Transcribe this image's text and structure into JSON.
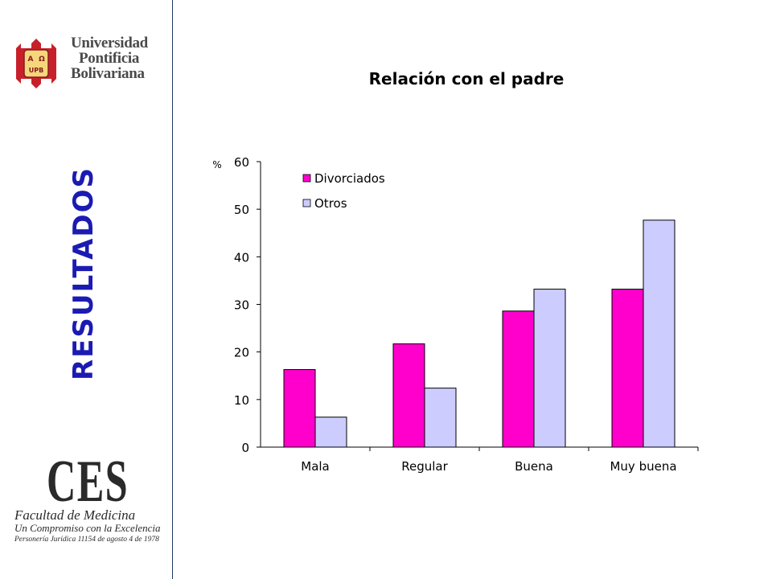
{
  "header": {
    "logo_lines": [
      "Universidad",
      "Pontificia",
      "Bolivariana"
    ],
    "seal_letters": [
      "A",
      "Ω",
      "UPB"
    ]
  },
  "sidebar": {
    "title": "RESULTADOS",
    "footer_logo": {
      "big": "CES",
      "line1": "Facultad de Medicina",
      "line2": "Un Compromiso con la Excelencia",
      "line3": "Personería Jurídica 11154 de agosto 4 de 1978"
    }
  },
  "colors": {
    "accent": "#1b1bb3",
    "divorciados": "#ff00cc",
    "otros": "#ccccff"
  },
  "chart_data": {
    "type": "bar",
    "title": "Relación con el padre",
    "ylabel": "%",
    "xlabel": "",
    "ylim": [
      0,
      60
    ],
    "yticks": [
      0,
      10,
      20,
      30,
      40,
      50,
      60
    ],
    "categories": [
      "Mala",
      "Regular",
      "Buena",
      "Muy buena"
    ],
    "series": [
      {
        "name": "Divorciados",
        "color": "#ff00cc",
        "values": [
          16.3,
          21.7,
          28.6,
          33.2
        ]
      },
      {
        "name": "Otros",
        "color": "#ccccff",
        "values": [
          6.3,
          12.4,
          33.2,
          47.7
        ]
      }
    ],
    "legend": "top-left",
    "grid": false
  }
}
